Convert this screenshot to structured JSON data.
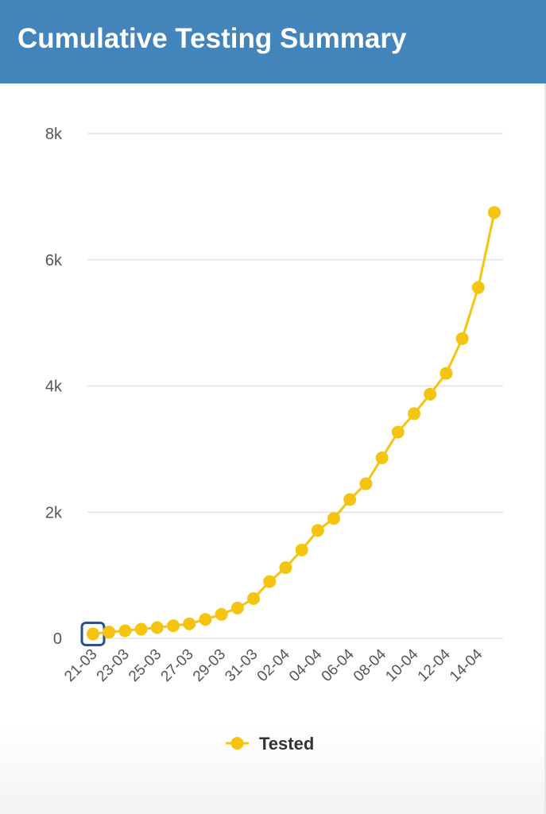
{
  "header": {
    "title": "Cumulative Testing Summary"
  },
  "colors": {
    "header_bg": "#4384bb",
    "series": "#f5c40f",
    "grid": "#e3e3e3",
    "focus": "#2b4f8f"
  },
  "chart_data": {
    "type": "line",
    "title": "Cumulative Testing Summary",
    "xlabel": "",
    "ylabel": "",
    "ylim": [
      0,
      8000
    ],
    "y_ticks": [
      0,
      2000,
      4000,
      6000,
      8000
    ],
    "y_tick_labels": [
      "0",
      "2k",
      "4k",
      "6k",
      "8k"
    ],
    "x": [
      "21-03",
      "22-03",
      "23-03",
      "24-03",
      "25-03",
      "26-03",
      "27-03",
      "28-03",
      "29-03",
      "30-03",
      "31-03",
      "01-04",
      "02-04",
      "03-04",
      "04-04",
      "05-04",
      "06-04",
      "07-04",
      "08-04",
      "09-04",
      "10-04",
      "11-04",
      "12-04",
      "13-04",
      "14-04",
      "15-04"
    ],
    "x_tick_labels": [
      "21-03",
      "23-03",
      "25-03",
      "27-03",
      "29-03",
      "31-03",
      "02-04",
      "04-04",
      "06-04",
      "08-04",
      "10-04",
      "12-04",
      "14-04"
    ],
    "series": [
      {
        "name": "Tested",
        "values": [
          70,
          100,
          120,
          145,
          170,
          200,
          230,
          300,
          380,
          480,
          630,
          900,
          1120,
          1400,
          1710,
          1900,
          2200,
          2450,
          2860,
          3270,
          3560,
          3870,
          4200,
          4750,
          5560,
          6750
        ]
      }
    ],
    "highlighted_point": "21-03",
    "legend": {
      "position": "bottom-center",
      "label": "Tested"
    },
    "grid": true
  }
}
